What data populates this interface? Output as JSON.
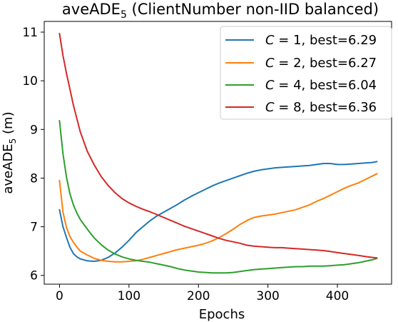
{
  "chart_data": {
    "type": "line",
    "title_main": "aveADE",
    "title_sub": "5",
    "title_rest": " (ClientNumber non-IID balanced)",
    "xlabel": "Epochs",
    "ylabel_main": "aveADE",
    "ylabel_sub": "5",
    "ylabel_rest": " (m)",
    "xlim": [
      -22,
      478
    ],
    "ylim": [
      5.82,
      11.22
    ],
    "xticks": [
      0,
      100,
      200,
      300,
      400
    ],
    "xtick_labels": [
      "0",
      "100",
      "200",
      "300",
      "400"
    ],
    "yticks": [
      6,
      7,
      8,
      9,
      10,
      11
    ],
    "ytick_labels": [
      "6",
      "7",
      "8",
      "9",
      "10",
      "11"
    ],
    "grid": false,
    "legend_position": "top-right",
    "series": [
      {
        "name_var": "C",
        "name_rest": " = 1, best=6.29",
        "color": "#1f77b4",
        "x": [
          0,
          5,
          10,
          15,
          20,
          25,
          30,
          40,
          50,
          60,
          70,
          80,
          90,
          100,
          110,
          120,
          130,
          140,
          150,
          160,
          170,
          180,
          190,
          200,
          210,
          220,
          230,
          240,
          250,
          260,
          270,
          280,
          290,
          300,
          310,
          320,
          330,
          340,
          350,
          360,
          370,
          380,
          390,
          400,
          410,
          420,
          430,
          440,
          450,
          457
        ],
        "y": [
          7.35,
          7.0,
          6.78,
          6.58,
          6.45,
          6.38,
          6.34,
          6.3,
          6.29,
          6.31,
          6.37,
          6.46,
          6.58,
          6.72,
          6.88,
          7.0,
          7.12,
          7.22,
          7.3,
          7.38,
          7.46,
          7.55,
          7.63,
          7.7,
          7.77,
          7.84,
          7.9,
          7.95,
          8.0,
          8.05,
          8.1,
          8.14,
          8.17,
          8.19,
          8.21,
          8.22,
          8.23,
          8.24,
          8.25,
          8.26,
          8.28,
          8.3,
          8.3,
          8.28,
          8.28,
          8.29,
          8.3,
          8.31,
          8.32,
          8.34
        ]
      },
      {
        "name_var": "C",
        "name_rest": " = 2, best=6.27",
        "color": "#ff7f0e",
        "x": [
          0,
          5,
          10,
          15,
          20,
          25,
          30,
          40,
          50,
          60,
          70,
          80,
          90,
          100,
          110,
          120,
          130,
          140,
          150,
          160,
          170,
          180,
          190,
          200,
          210,
          220,
          230,
          240,
          250,
          260,
          270,
          280,
          290,
          300,
          310,
          320,
          330,
          340,
          350,
          360,
          370,
          380,
          390,
          400,
          410,
          420,
          430,
          440,
          450,
          457
        ],
        "y": [
          7.95,
          7.3,
          6.98,
          6.8,
          6.68,
          6.58,
          6.5,
          6.42,
          6.35,
          6.31,
          6.29,
          6.28,
          6.28,
          6.29,
          6.3,
          6.33,
          6.37,
          6.41,
          6.45,
          6.49,
          6.53,
          6.56,
          6.59,
          6.62,
          6.66,
          6.71,
          6.78,
          6.86,
          6.95,
          7.05,
          7.13,
          7.19,
          7.22,
          7.24,
          7.26,
          7.29,
          7.32,
          7.35,
          7.4,
          7.45,
          7.52,
          7.58,
          7.65,
          7.72,
          7.79,
          7.85,
          7.9,
          7.97,
          8.04,
          8.09
        ]
      },
      {
        "name_var": "C",
        "name_rest": " = 4, best=6.04",
        "color": "#2ca02c",
        "x": [
          0,
          5,
          10,
          15,
          20,
          25,
          30,
          40,
          50,
          60,
          70,
          80,
          90,
          100,
          110,
          120,
          130,
          140,
          150,
          160,
          170,
          180,
          190,
          200,
          210,
          220,
          230,
          240,
          250,
          260,
          270,
          280,
          290,
          300,
          310,
          320,
          330,
          340,
          350,
          360,
          370,
          380,
          390,
          400,
          410,
          420,
          430,
          440,
          450,
          457
        ],
        "y": [
          9.18,
          8.5,
          8.02,
          7.68,
          7.45,
          7.28,
          7.15,
          6.95,
          6.77,
          6.63,
          6.52,
          6.44,
          6.38,
          6.34,
          6.31,
          6.29,
          6.27,
          6.24,
          6.21,
          6.18,
          6.14,
          6.11,
          6.09,
          6.07,
          6.06,
          6.05,
          6.05,
          6.05,
          6.06,
          6.08,
          6.1,
          6.12,
          6.13,
          6.14,
          6.15,
          6.16,
          6.17,
          6.18,
          6.18,
          6.19,
          6.19,
          6.19,
          6.2,
          6.21,
          6.22,
          6.24,
          6.26,
          6.29,
          6.32,
          6.35
        ]
      },
      {
        "name_var": "C",
        "name_rest": " = 8, best=6.36",
        "color": "#d62728",
        "x": [
          0,
          5,
          10,
          15,
          20,
          25,
          30,
          40,
          50,
          60,
          70,
          80,
          90,
          100,
          110,
          120,
          130,
          140,
          150,
          160,
          170,
          180,
          190,
          200,
          210,
          220,
          230,
          240,
          250,
          260,
          270,
          280,
          290,
          300,
          310,
          320,
          330,
          340,
          350,
          360,
          370,
          380,
          390,
          400,
          410,
          420,
          430,
          440,
          450,
          457
        ],
        "y": [
          10.97,
          10.52,
          10.15,
          9.83,
          9.5,
          9.22,
          8.95,
          8.55,
          8.27,
          8.03,
          7.85,
          7.7,
          7.58,
          7.49,
          7.42,
          7.36,
          7.31,
          7.25,
          7.19,
          7.13,
          7.07,
          7.01,
          6.96,
          6.91,
          6.86,
          6.81,
          6.76,
          6.72,
          6.69,
          6.66,
          6.62,
          6.6,
          6.59,
          6.58,
          6.57,
          6.57,
          6.56,
          6.55,
          6.54,
          6.53,
          6.52,
          6.51,
          6.49,
          6.47,
          6.45,
          6.43,
          6.41,
          6.39,
          6.37,
          6.36
        ]
      }
    ]
  }
}
